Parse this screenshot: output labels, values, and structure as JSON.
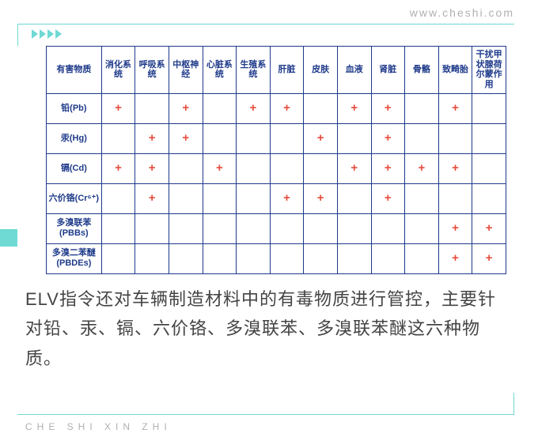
{
  "url": "www.cheshi.com",
  "footer_brand": "CHE SHI XIN ZHI",
  "caption": "ELV指令还对车辆制造材料中的有毒物质进行管控，主要针对铅、汞、镉、六价铬、多溴联苯、多溴联苯醚这六种物质。",
  "table": {
    "row_header_title": "有害物质",
    "columns": [
      "消化系统",
      "呼吸系统",
      "中枢神经",
      "心脏系统",
      "生殖系统",
      "肝脏",
      "皮肤",
      "血液",
      "肾脏",
      "骨骼",
      "致畸胎",
      "干扰甲状腺荷尔蒙作用"
    ],
    "rows": [
      {
        "label": "铅(Pb)",
        "marks": [
          "+",
          "",
          "+",
          "",
          "+",
          "+",
          "",
          "+",
          "+",
          "",
          "+",
          ""
        ]
      },
      {
        "label": "汞(Hg)",
        "marks": [
          "",
          "+",
          "+",
          "",
          "",
          "",
          "+",
          "",
          "+",
          "",
          "",
          ""
        ]
      },
      {
        "label": "镉(Cd)",
        "marks": [
          "+",
          "+",
          "",
          "+",
          "",
          "",
          "",
          "+",
          "+",
          "+",
          "+",
          ""
        ]
      },
      {
        "label": "六价铬(Cr⁶⁺)",
        "marks": [
          "",
          "+",
          "",
          "",
          "",
          "+",
          "+",
          "",
          "+",
          "",
          "",
          ""
        ]
      },
      {
        "label": "多溴联苯(PBBs)",
        "marks": [
          "",
          "",
          "",
          "",
          "",
          "",
          "",
          "",
          "",
          "",
          "+",
          "+"
        ]
      },
      {
        "label": "多溴二苯醚(PBDEs)",
        "marks": [
          "",
          "",
          "",
          "",
          "",
          "",
          "",
          "",
          "",
          "",
          "+",
          "+"
        ]
      }
    ],
    "colors": {
      "border": "#1e3a8a",
      "mark": "#e74c3c",
      "accent": "#6fd9d4"
    }
  }
}
